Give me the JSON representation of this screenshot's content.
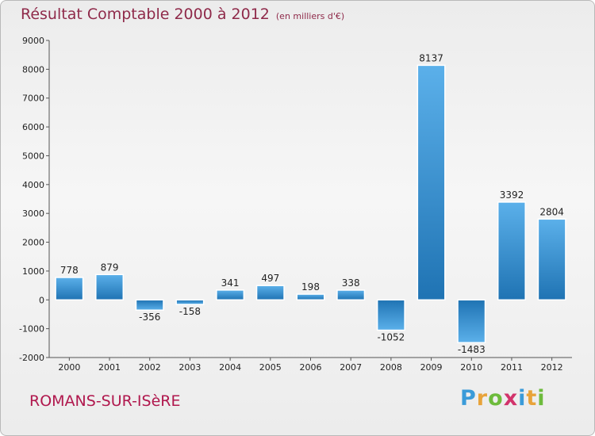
{
  "header": {
    "title": "Résultat Comptable 2000 à 2012",
    "subtitle": "(en milliers d'€)"
  },
  "footer": {
    "location": "ROMANS-SUR-ISèRE"
  },
  "logo": {
    "letters": [
      "P",
      "r",
      "o",
      "x",
      "i",
      "t",
      "i"
    ],
    "colors": [
      "#3a9bd9",
      "#e8a33a",
      "#6dbb3c",
      "#d2336b",
      "#3a9bd9",
      "#e8a33a",
      "#6dbb3c"
    ]
  },
  "colors": {
    "bar_light": "#5bb0ea",
    "bar_dark": "#1f73b3",
    "title": "#8f2a4a",
    "location": "#b0174d"
  },
  "chart_data": {
    "type": "bar",
    "title": "Résultat Comptable 2000 à 2012",
    "xlabel": "",
    "ylabel": "",
    "categories": [
      "2000",
      "2001",
      "2002",
      "2003",
      "2004",
      "2005",
      "2006",
      "2007",
      "2008",
      "2009",
      "2010",
      "2011",
      "2012"
    ],
    "values": [
      778,
      879,
      -356,
      -158,
      341,
      497,
      198,
      338,
      -1052,
      8137,
      -1483,
      3392,
      2804
    ],
    "data_labels": [
      "778",
      "879",
      "-356",
      "-158",
      "341",
      "497",
      "198",
      "338",
      "-1052",
      "8137",
      "-1483",
      "3392",
      "2804"
    ],
    "ylim": [
      -2000,
      9000
    ],
    "yticks": [
      -2000,
      -1000,
      0,
      1000,
      2000,
      3000,
      4000,
      5000,
      6000,
      7000,
      8000,
      9000
    ],
    "grid": false,
    "legend": "none"
  }
}
